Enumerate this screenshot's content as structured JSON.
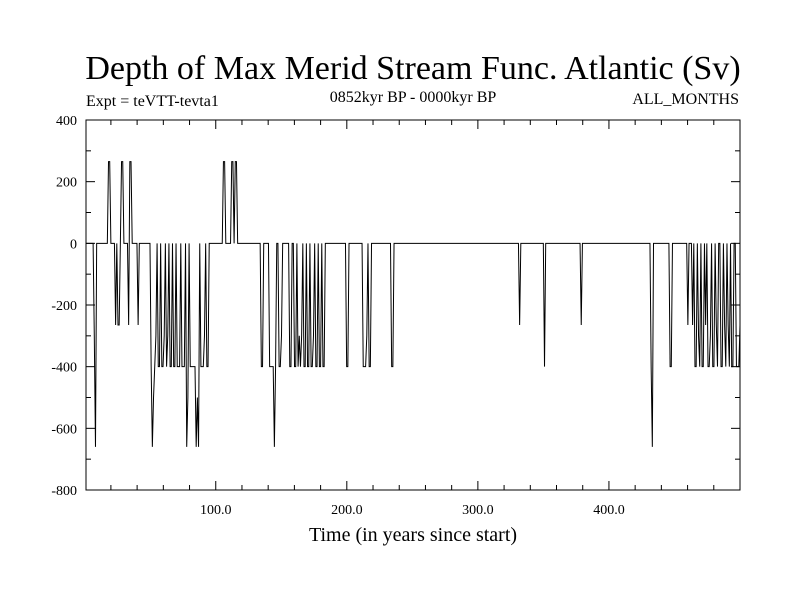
{
  "chart_data": {
    "type": "line",
    "title": "Depth of Max Merid Stream Func. Atlantic (Sv)",
    "experiment_label": "Expt = teVTT-tevta1",
    "period_label": "0852kyr BP - 0000kyr BP",
    "months_label": "ALL_MONTHS",
    "xlabel": "Time (in years since start)",
    "ylabel": "",
    "xlim": [
      1,
      500
    ],
    "ylim": [
      -800,
      400
    ],
    "xticks_major": [
      100,
      200,
      300,
      400
    ],
    "xtick_labels": [
      "100.0",
      "200.0",
      "300.0",
      "400.0"
    ],
    "yticks_major": [
      -800,
      -600,
      -400,
      -200,
      0,
      200,
      400
    ],
    "ytick_labels": [
      "-800",
      "-600",
      "-400",
      "-200",
      "0",
      "200",
      "400"
    ],
    "grid": false,
    "series": [
      {
        "values": [
          0,
          0,
          0,
          0,
          0,
          0,
          0,
          -300,
          -660,
          0,
          0,
          0,
          0,
          0,
          0,
          0,
          0,
          0,
          0,
          265,
          265,
          0,
          0,
          0,
          0,
          -265,
          0,
          -265,
          -265,
          0,
          265,
          265,
          0,
          0,
          0,
          0,
          -265,
          265,
          265,
          0,
          0,
          0,
          0,
          0,
          -265,
          0,
          0,
          0,
          0,
          0,
          0,
          0,
          0,
          0,
          0,
          -400,
          -660,
          -500,
          -400,
          -300,
          0,
          -400,
          -400,
          0,
          -400,
          -400,
          -300,
          0,
          -400,
          -300,
          0,
          -400,
          -400,
          0,
          -400,
          -400,
          0,
          -400,
          -400,
          -400,
          0,
          -400,
          -400,
          -400,
          0,
          -660,
          -500,
          0,
          -400,
          -400,
          -400,
          -400,
          -400,
          -660,
          -500,
          -660,
          0,
          -400,
          -400,
          -400,
          -300,
          0,
          -400,
          -400,
          0,
          0,
          0,
          0,
          0,
          0,
          0,
          0,
          0,
          0,
          0,
          0,
          265,
          265,
          0,
          0,
          0,
          0,
          0,
          265,
          265,
          0,
          265,
          265,
          0,
          0,
          0,
          0,
          0,
          0,
          0,
          0,
          0,
          0,
          0,
          0,
          0,
          0,
          0,
          0,
          0,
          0,
          0,
          0,
          -400,
          -400,
          0,
          0,
          0,
          0,
          0,
          -400,
          -400,
          -400,
          -400,
          -660,
          -400,
          0,
          0,
          -400,
          -400,
          -300,
          0,
          0,
          0,
          0,
          0,
          0,
          -400,
          -400,
          0,
          0,
          -400,
          -400,
          0,
          -400,
          -300,
          -400,
          -300,
          0,
          -400,
          -400,
          0,
          -400,
          -400,
          0,
          -400,
          -400,
          -300,
          0,
          -400,
          -400,
          0,
          -400,
          -400,
          0,
          -400,
          -400,
          0,
          0,
          0,
          0,
          0,
          0,
          0,
          0,
          0,
          0,
          0,
          0,
          0,
          0,
          0,
          0,
          0,
          0,
          -400,
          -400,
          0,
          0,
          0,
          0,
          0,
          0,
          0,
          0,
          0,
          0,
          0,
          0,
          -400,
          -400,
          -400,
          -300,
          0,
          -400,
          -400,
          0,
          0,
          0,
          0,
          0,
          0,
          0,
          0,
          0,
          0,
          0,
          0,
          0,
          0,
          0,
          0,
          0,
          -400,
          -400,
          0,
          0,
          0,
          0,
          0,
          0,
          0,
          0,
          0,
          0,
          0,
          0,
          0,
          0,
          0,
          0,
          0,
          0,
          0,
          0,
          0,
          0,
          0,
          0,
          0,
          0,
          0,
          0,
          0,
          0,
          0,
          0,
          0,
          0,
          0,
          0,
          0,
          0,
          0,
          0,
          0,
          0,
          0,
          0,
          0,
          0,
          0,
          0,
          0,
          0,
          0,
          0,
          0,
          0,
          0,
          0,
          0,
          0,
          0,
          0,
          0,
          0,
          0,
          0,
          0,
          0,
          0,
          0,
          0,
          0,
          0,
          0,
          0,
          0,
          0,
          0,
          0,
          0,
          0,
          0,
          0,
          0,
          0,
          0,
          0,
          0,
          0,
          0,
          0,
          0,
          0,
          0,
          0,
          0,
          0,
          0,
          0,
          0,
          0,
          0,
          0,
          0,
          0,
          0,
          0,
          0,
          -265,
          0,
          0,
          0,
          0,
          0,
          0,
          0,
          0,
          0,
          0,
          0,
          0,
          0,
          0,
          0,
          0,
          0,
          0,
          0,
          0,
          -400,
          0,
          0,
          0,
          0,
          0,
          0,
          0,
          0,
          0,
          0,
          0,
          0,
          0,
          0,
          0,
          0,
          0,
          0,
          0,
          0,
          0,
          0,
          0,
          0,
          0,
          0,
          0,
          0,
          0,
          0,
          -265,
          0,
          0,
          0,
          0,
          0,
          0,
          0,
          0,
          0,
          0,
          0,
          0,
          0,
          0,
          0,
          0,
          0,
          0,
          0,
          0,
          0,
          0,
          0,
          0,
          0,
          0,
          0,
          0,
          0,
          0,
          0,
          0,
          0,
          0,
          0,
          0,
          0,
          0,
          0,
          0,
          0,
          0,
          0,
          0,
          0,
          0,
          0,
          0,
          0,
          0,
          0,
          0,
          0,
          0,
          0,
          0,
          0,
          0,
          -400,
          -660,
          0,
          0,
          0,
          0,
          0,
          0,
          0,
          0,
          0,
          0,
          0,
          0,
          0,
          0,
          -400,
          -400,
          0,
          0,
          0,
          0,
          0,
          0,
          0,
          0,
          0,
          0,
          0,
          0,
          0,
          -265,
          0,
          0,
          0,
          -265,
          0,
          -400,
          -400,
          0,
          -300,
          -400,
          0,
          -400,
          -400,
          0,
          -265,
          0,
          -400,
          -400,
          -300,
          0,
          -400,
          -400,
          0,
          -265,
          -400,
          0,
          0,
          -400,
          -400,
          0,
          -265,
          -400,
          0,
          -265,
          -400,
          0,
          -400,
          -400,
          0,
          0,
          -400,
          -400,
          -400,
          -265
        ]
      }
    ]
  }
}
